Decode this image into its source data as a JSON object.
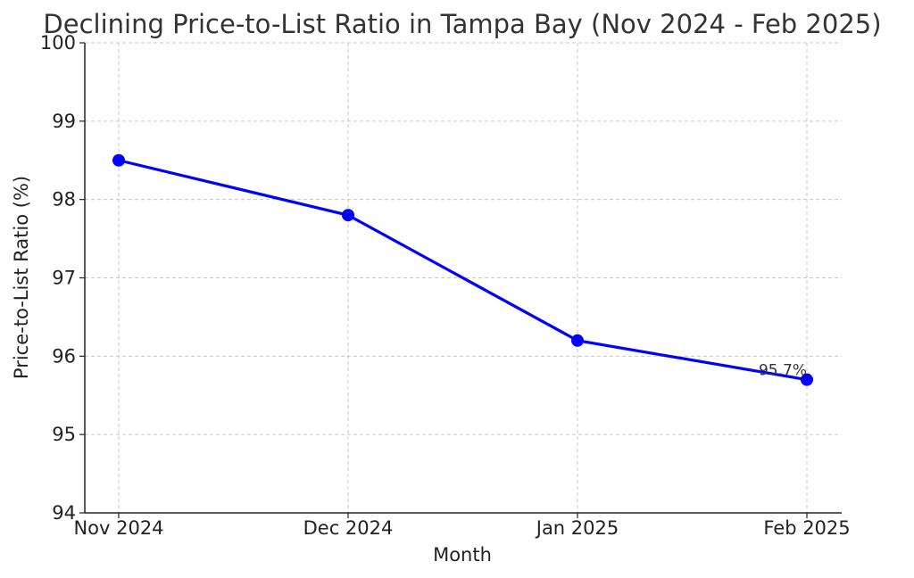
{
  "chart_data": {
    "type": "line",
    "title": "Declining Price-to-List Ratio in Tampa Bay (Nov 2024 - Feb 2025)",
    "xlabel": "Month",
    "ylabel": "Price-to-List Ratio (%)",
    "categories": [
      "Nov 2024",
      "Dec 2024",
      "Jan 2025",
      "Feb 2025"
    ],
    "values": [
      98.5,
      97.8,
      96.2,
      95.7
    ],
    "ylim": [
      94,
      100
    ],
    "yticks": [
      "94",
      "95",
      "96",
      "97",
      "98",
      "99",
      "100"
    ],
    "grid": true,
    "line_color": "#0000ff",
    "annotations": [
      {
        "category": "Feb 2025",
        "value": 95.7,
        "text": "95.7%"
      }
    ]
  }
}
